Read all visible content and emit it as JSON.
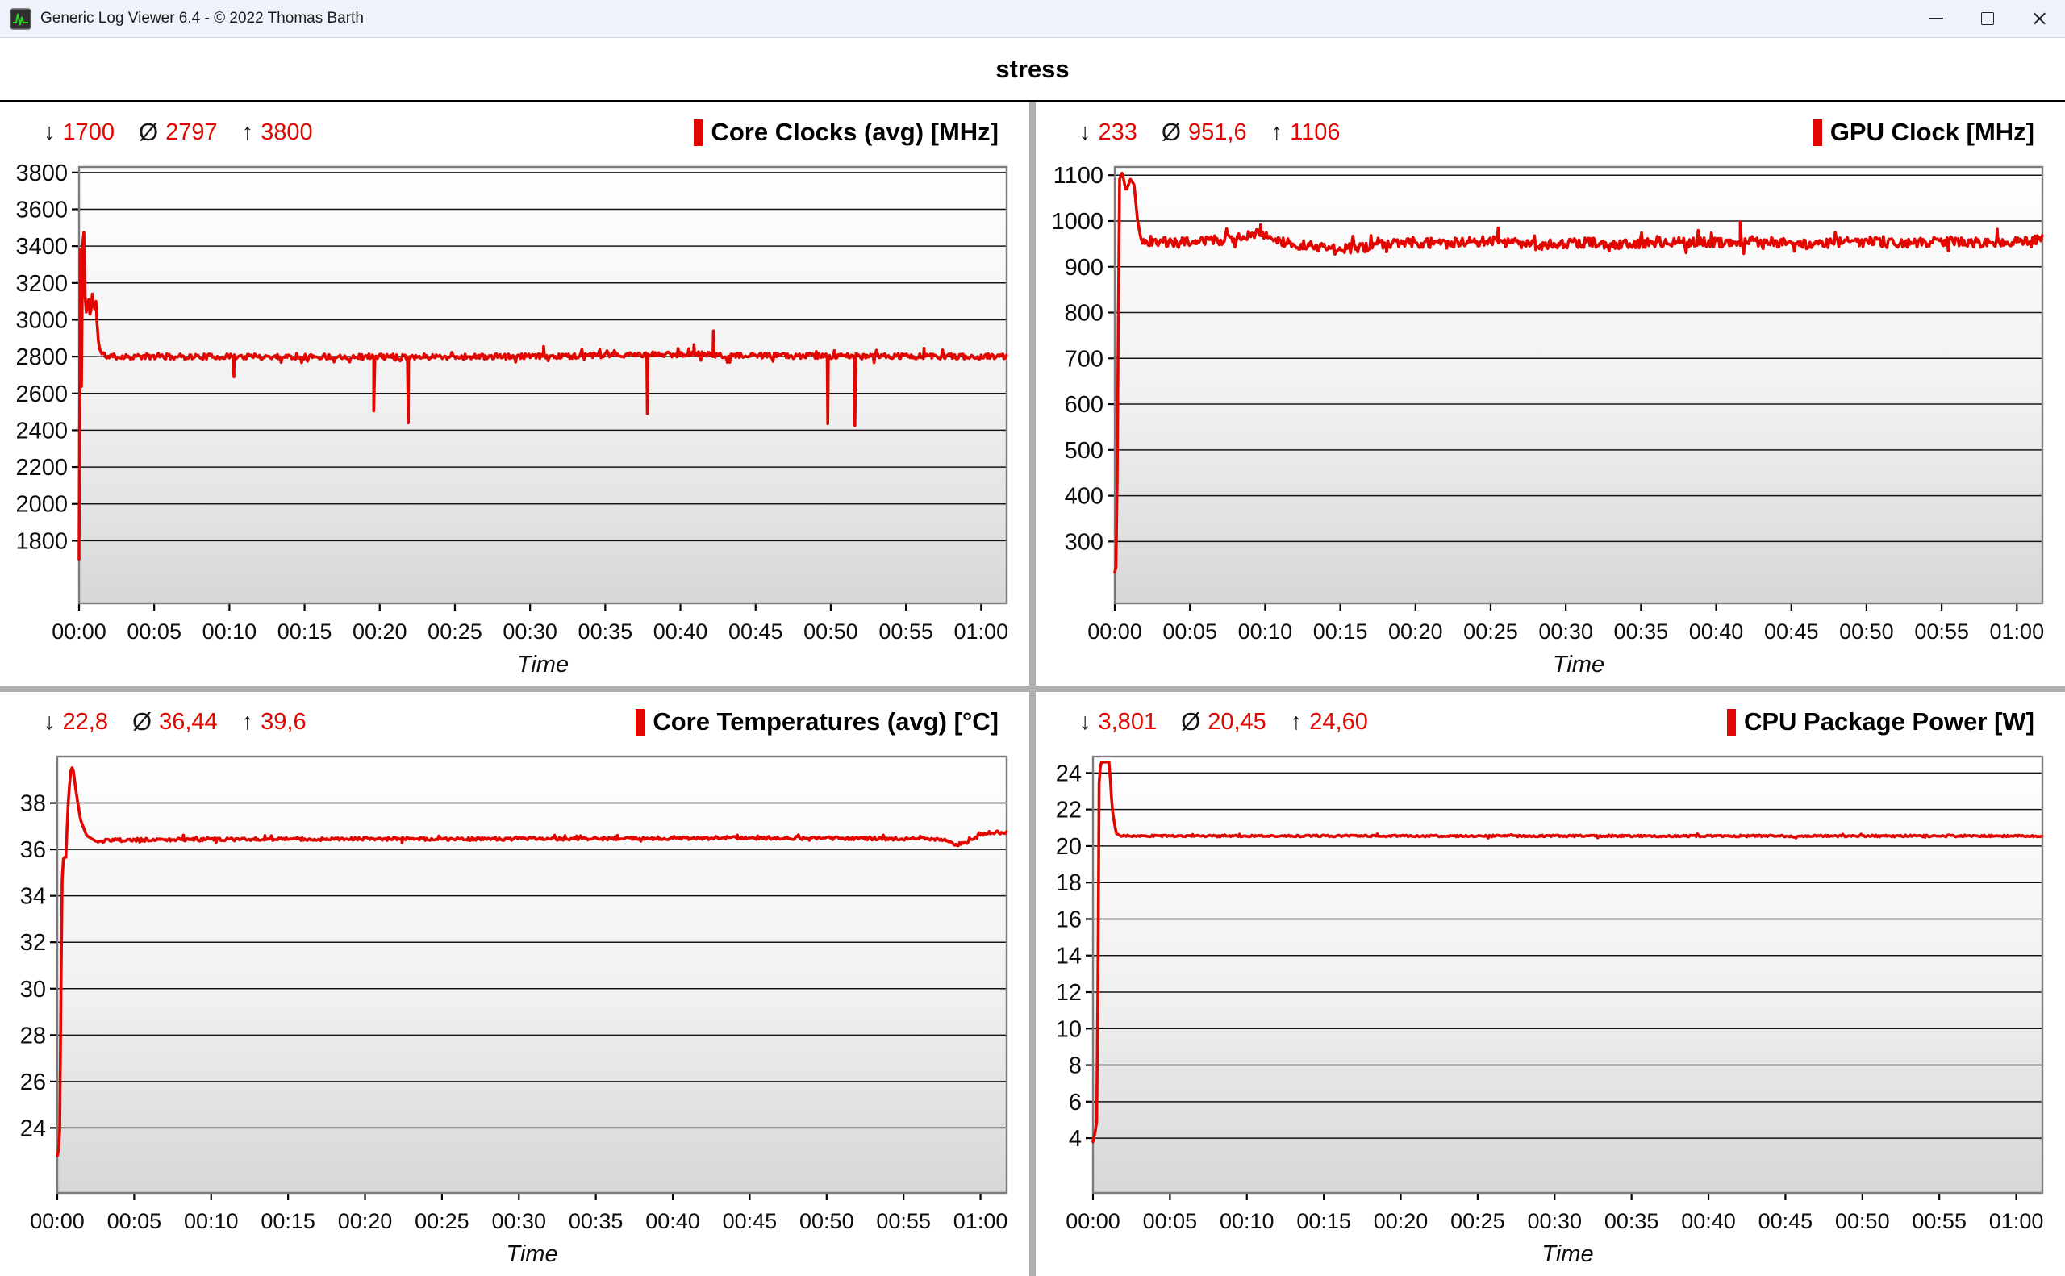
{
  "window": {
    "title": "Generic Log Viewer 6.4 - © 2022 Thomas Barth"
  },
  "icons": {
    "app": "green-waveform-on-dark-square",
    "minimize": "horizontal-line",
    "maximize": "square-outline",
    "close": "x-cross"
  },
  "header": {
    "title": "stress"
  },
  "symbols": {
    "min": "↓",
    "avg": "Ø",
    "max": "↑"
  },
  "colors": {
    "accent_red": "#e10600",
    "grid": "#141414",
    "plot_border": "#7c7c7c",
    "plot_bg_top": "#ffffff",
    "plot_bg_mid": "#f0f0f0",
    "plot_bg_bottom": "#d7d7d7",
    "divider": "#aeaeae",
    "titlebar_bg": "#eef2fa"
  },
  "time_axis": {
    "label": "Time",
    "tick_minutes": [
      0,
      5,
      10,
      15,
      20,
      25,
      30,
      35,
      40,
      45,
      50,
      55,
      60
    ],
    "tick_labels": [
      "00:00",
      "00:05",
      "00:10",
      "00:15",
      "00:20",
      "00:25",
      "00:30",
      "00:35",
      "00:40",
      "00:45",
      "00:50",
      "00:55",
      "01:00"
    ]
  },
  "chart_data": [
    {
      "type": "line",
      "title": "Core Clocks (avg) [MHz]",
      "unit": "MHz",
      "stats": {
        "min": "1700",
        "avg": "2797",
        "max": "3800"
      },
      "xlabel": "Time",
      "xlim": [
        0,
        61.7
      ],
      "ylim": [
        1460,
        3830
      ],
      "y_ticks": [
        1800,
        2000,
        2200,
        2400,
        2600,
        2800,
        3000,
        3200,
        3400,
        3600,
        3800
      ],
      "line_color": "#e10600",
      "keypoints": [
        [
          0,
          1700
        ],
        [
          0.1,
          3800
        ],
        [
          0.18,
          2250
        ],
        [
          0.26,
          3800
        ],
        [
          0.38,
          3150
        ],
        [
          0.5,
          3020
        ],
        [
          0.62,
          3130
        ],
        [
          0.75,
          3000
        ],
        [
          0.88,
          3140
        ],
        [
          1.0,
          3040
        ],
        [
          1.12,
          3100
        ],
        [
          1.25,
          2900
        ],
        [
          1.45,
          2815
        ],
        [
          2,
          2800
        ],
        [
          15,
          2800
        ],
        [
          30,
          2800
        ],
        [
          41.5,
          2815
        ],
        [
          42.5,
          2805
        ],
        [
          61.7,
          2800
        ]
      ],
      "noise": [
        [
          1.35,
          61.7,
          15
        ]
      ],
      "spikes": [
        [
          10.3,
          2690
        ],
        [
          19.6,
          2505
        ],
        [
          21.9,
          2440
        ],
        [
          30.9,
          2855
        ],
        [
          37.8,
          2490
        ],
        [
          40.9,
          2865
        ],
        [
          42.2,
          2940
        ],
        [
          49.8,
          2435
        ],
        [
          51.6,
          2425
        ],
        [
          56.2,
          2845
        ]
      ]
    },
    {
      "type": "line",
      "title": "GPU Clock [MHz]",
      "unit": "MHz",
      "stats": {
        "min": "233",
        "avg": "951,6",
        "max": "1106"
      },
      "xlabel": "Time",
      "xlim": [
        0,
        61.7
      ],
      "ylim": [
        165,
        1118
      ],
      "y_ticks": [
        300,
        400,
        500,
        600,
        700,
        800,
        900,
        1000,
        1100
      ],
      "line_color": "#e10600",
      "keypoints": [
        [
          0,
          233
        ],
        [
          0.12,
          250
        ],
        [
          0.3,
          1090
        ],
        [
          0.5,
          1106
        ],
        [
          0.75,
          1065
        ],
        [
          1.05,
          1092
        ],
        [
          1.3,
          1078
        ],
        [
          1.5,
          1005
        ],
        [
          1.75,
          958
        ],
        [
          4,
          952
        ],
        [
          7,
          958
        ],
        [
          9,
          968
        ],
        [
          9.6,
          975
        ],
        [
          10.2,
          962
        ],
        [
          12,
          950
        ],
        [
          14.5,
          938
        ],
        [
          16.5,
          942
        ],
        [
          19,
          955
        ],
        [
          22,
          950
        ],
        [
          25,
          958
        ],
        [
          28,
          948
        ],
        [
          31,
          953
        ],
        [
          34,
          950
        ],
        [
          37,
          955
        ],
        [
          40,
          952
        ],
        [
          43,
          956
        ],
        [
          46,
          950
        ],
        [
          49,
          955
        ],
        [
          52,
          952
        ],
        [
          55,
          956
        ],
        [
          58,
          953
        ],
        [
          61.7,
          958
        ]
      ],
      "noise": [
        [
          1.75,
          61.7,
          11
        ]
      ],
      "spikes": [
        [
          9.7,
          992
        ],
        [
          25.5,
          985
        ],
        [
          41.6,
          998
        ],
        [
          58.7,
          982
        ]
      ]
    },
    {
      "type": "line",
      "title": "Core Temperatures (avg) [°C]",
      "unit": "°C",
      "stats": {
        "min": "22,8",
        "avg": "36,44",
        "max": "39,6"
      },
      "xlabel": "Time",
      "xlim": [
        0,
        61.7
      ],
      "ylim": [
        21.2,
        40.0
      ],
      "y_ticks": [
        24,
        26,
        28,
        30,
        32,
        34,
        36,
        38
      ],
      "line_color": "#e10600",
      "keypoints": [
        [
          0,
          22.8
        ],
        [
          0.15,
          23.2
        ],
        [
          0.3,
          34.5
        ],
        [
          0.42,
          35.8
        ],
        [
          0.55,
          35.5
        ],
        [
          0.7,
          37.9
        ],
        [
          0.85,
          39.3
        ],
        [
          1.0,
          39.6
        ],
        [
          1.2,
          38.6
        ],
        [
          1.5,
          37.3
        ],
        [
          1.9,
          36.6
        ],
        [
          2.5,
          36.35
        ],
        [
          4,
          36.4
        ],
        [
          15,
          36.45
        ],
        [
          30,
          36.45
        ],
        [
          45,
          36.5
        ],
        [
          57.5,
          36.45
        ],
        [
          58.5,
          36.2
        ],
        [
          59.3,
          36.35
        ],
        [
          60,
          36.65
        ],
        [
          60.8,
          36.75
        ],
        [
          61.7,
          36.7
        ]
      ],
      "noise": [
        [
          2.5,
          61.7,
          0.07
        ]
      ],
      "spikes": [
        [
          8.2,
          36.62
        ],
        [
          13.5,
          36.6
        ],
        [
          22.4,
          36.28
        ],
        [
          33,
          36.6
        ],
        [
          44.2,
          36.62
        ]
      ]
    },
    {
      "type": "line",
      "title": "CPU Package Power [W]",
      "unit": "W",
      "stats": {
        "min": "3,801",
        "avg": "20,45",
        "max": "24,60"
      },
      "xlabel": "Time",
      "xlim": [
        0,
        61.7
      ],
      "ylim": [
        1.0,
        24.9
      ],
      "y_ticks": [
        4,
        6,
        8,
        10,
        12,
        14,
        16,
        18,
        20,
        22,
        24
      ],
      "line_color": "#e10600",
      "keypoints": [
        [
          0,
          3.8
        ],
        [
          0.2,
          4.6
        ],
        [
          0.28,
          5.3
        ],
        [
          0.38,
          23.2
        ],
        [
          0.5,
          24.6
        ],
        [
          1.05,
          24.6
        ],
        [
          1.25,
          22.0
        ],
        [
          1.5,
          20.7
        ],
        [
          1.8,
          20.55
        ],
        [
          61.7,
          20.55
        ]
      ],
      "noise": [
        [
          1.8,
          61.7,
          0.05
        ]
      ],
      "spikes": []
    }
  ]
}
